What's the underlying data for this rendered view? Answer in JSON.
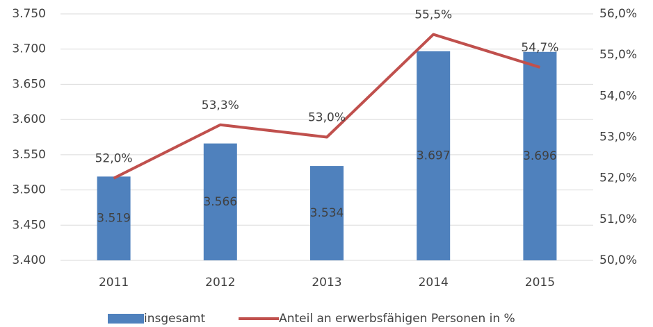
{
  "chart_data": {
    "type": "bar",
    "categories": [
      "2011",
      "2012",
      "2013",
      "2014",
      "2015"
    ],
    "series": [
      {
        "name": "insgesamt",
        "color": "#4f81bd",
        "values": [
          3519,
          3566,
          3534,
          3697,
          3696
        ],
        "value_labels": [
          "3.519",
          "3.566",
          "3.534",
          "3.697",
          "3.696"
        ]
      },
      {
        "name": "Anteil an erwerbsfähigen Personen in %",
        "color": "#c0504d",
        "type": "line",
        "axis": "y2",
        "values": [
          52.0,
          53.3,
          53.0,
          55.5,
          54.7
        ],
        "value_labels": [
          "52,0%",
          "53,3%",
          "53,0%",
          "55,5%",
          "54,7%"
        ]
      }
    ],
    "ylim": [
      3400,
      3750
    ],
    "yticks": [
      {
        "value": 3400,
        "label": "3.400"
      },
      {
        "value": 3450,
        "label": "3.450"
      },
      {
        "value": 3500,
        "label": "3.500"
      },
      {
        "value": 3550,
        "label": "3.550"
      },
      {
        "value": 3600,
        "label": "3.600"
      },
      {
        "value": 3650,
        "label": "3.650"
      },
      {
        "value": 3700,
        "label": "3.700"
      },
      {
        "value": 3750,
        "label": "3.750"
      }
    ],
    "y2lim": [
      50,
      56
    ],
    "y2ticks": [
      {
        "value": 50,
        "label": "50,0%"
      },
      {
        "value": 51,
        "label": "51,0%"
      },
      {
        "value": 52,
        "label": "52,0%"
      },
      {
        "value": 53,
        "label": "53,0%"
      },
      {
        "value": 54,
        "label": "54,0%"
      },
      {
        "value": 55,
        "label": "55,0%"
      },
      {
        "value": 56,
        "label": "56,0%"
      }
    ],
    "grid": true,
    "legend": "bottom"
  }
}
